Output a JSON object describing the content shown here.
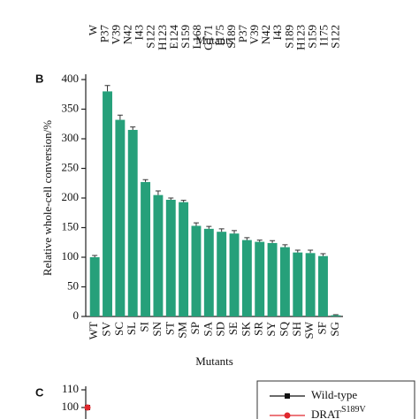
{
  "chart_data": [
    {
      "type": "bar",
      "x_label": "Mutants",
      "categories": [
        "W",
        "P37",
        "V39",
        "N42",
        "I43",
        "S122",
        "H123",
        "E124",
        "S159",
        "L168",
        "G171",
        "I175",
        "S189",
        "P37",
        "V39",
        "N42",
        "I43",
        "S189",
        "H123",
        "S159",
        "I175",
        "S122"
      ]
    },
    {
      "type": "bar",
      "panel": "B",
      "x_label": "Mutants",
      "y_label": "Relative whole-cell conversion/%",
      "categories": [
        "WT",
        "SV",
        "SC",
        "SL",
        "SI",
        "SN",
        "ST",
        "SM",
        "SP",
        "SA",
        "SD",
        "SE",
        "SK",
        "SR",
        "SY",
        "SQ",
        "SH",
        "SW",
        "SF",
        "SG"
      ],
      "values": [
        100,
        380,
        332,
        315,
        227,
        205,
        197,
        193,
        153,
        148,
        143,
        140,
        129,
        126,
        124,
        117,
        108,
        107,
        102,
        2
      ],
      "errors": [
        3,
        10,
        8,
        5,
        4,
        7,
        3,
        3,
        5,
        4,
        5,
        5,
        4,
        3,
        4,
        4,
        4,
        5,
        4,
        1
      ],
      "color": "#26a07a",
      "ylim": [
        0,
        400
      ],
      "yticks": [
        0,
        50,
        100,
        150,
        200,
        250,
        300,
        350,
        400
      ]
    },
    {
      "type": "line",
      "panel": "C",
      "ylim": [
        96,
        112
      ],
      "yticks": [
        100,
        110
      ],
      "series": [
        {
          "name": "Wild-type",
          "color": "#111111",
          "marker": "square",
          "values": [
            100
          ]
        },
        {
          "name": "DRAT",
          "name_sup": "S189V",
          "color": "#e0282e",
          "marker": "circle",
          "values": [
            100
          ]
        }
      ]
    }
  ]
}
